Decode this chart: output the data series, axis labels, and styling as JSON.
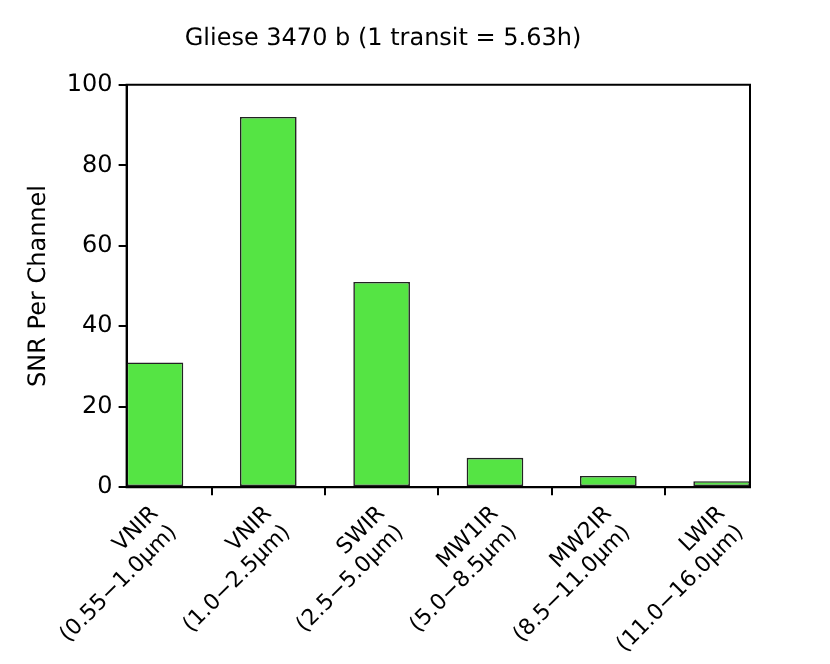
{
  "chart_data": {
    "type": "bar",
    "title": "Gliese 3470 b (1 transit = 5.63h)",
    "ylabel": "SNR Per Channel",
    "categories": [
      "VNIR\n(0.55−1.0μm)",
      "VNIR\n(1.0−2.5μm)",
      "SWIR\n(2.5−5.0μm)",
      "MW1IR\n(5.0−8.5μm)",
      "MW2IR\n(8.5−11.0μm)",
      "LWIR\n(11.0−16.0μm)"
    ],
    "values": [
      31,
      92,
      51,
      7.3,
      2.8,
      1.5
    ],
    "color": "#55e444",
    "ylim": [
      0,
      100
    ],
    "yticks": [
      0,
      20,
      40,
      60,
      80,
      100
    ],
    "grid": false,
    "legend": false
  }
}
